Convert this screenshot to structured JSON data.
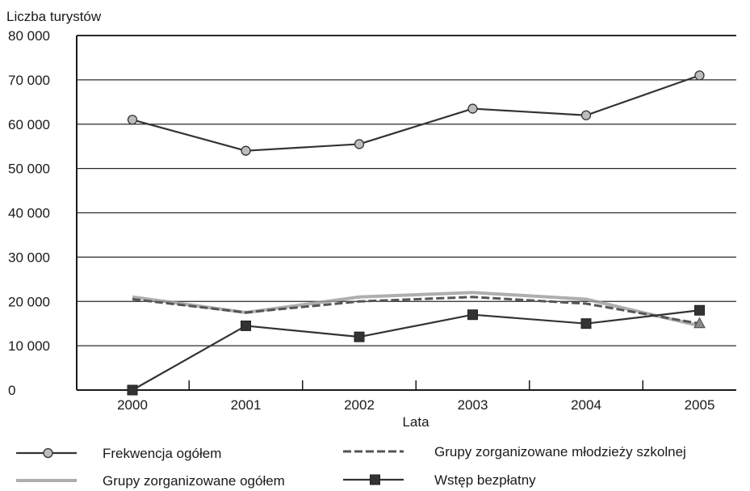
{
  "chart_data": {
    "type": "line",
    "title": "",
    "ylabel": "Liczba turystów",
    "xlabel": "Lata",
    "categories": [
      "2000",
      "2001",
      "2002",
      "2003",
      "2004",
      "2005"
    ],
    "ylim": [
      0,
      80000
    ],
    "yticks": [
      0,
      10000,
      20000,
      30000,
      40000,
      50000,
      60000,
      70000,
      80000
    ],
    "ytick_labels": [
      "0",
      "10 000",
      "20 000",
      "30 000",
      "40 000",
      "50 000",
      "60 000",
      "70 000",
      "80 000"
    ],
    "grid": "horizontal",
    "legend_position": "bottom",
    "series": [
      {
        "name": "Frekwencja ogółem",
        "values": [
          61000,
          54000,
          55500,
          63500,
          62000,
          71000
        ],
        "marker": "circle",
        "style": "solid",
        "color": "#333333"
      },
      {
        "name": "Grupy zorganizowane młodzieży szkolnej",
        "values": [
          20500,
          17500,
          20000,
          21000,
          19500,
          15000
        ],
        "marker": "triangle",
        "style": "dashed",
        "color": "#555555"
      },
      {
        "name": "Grupy zorganizowane ogółem",
        "values": [
          21000,
          17500,
          21000,
          22000,
          20500,
          14500
        ],
        "marker": "none",
        "style": "solid-light",
        "color": "#9a9a9a"
      },
      {
        "name": "Wstęp bezpłatny",
        "values": [
          0,
          14500,
          12000,
          17000,
          15000,
          18000
        ],
        "marker": "square",
        "style": "solid",
        "color": "#333333"
      }
    ]
  }
}
